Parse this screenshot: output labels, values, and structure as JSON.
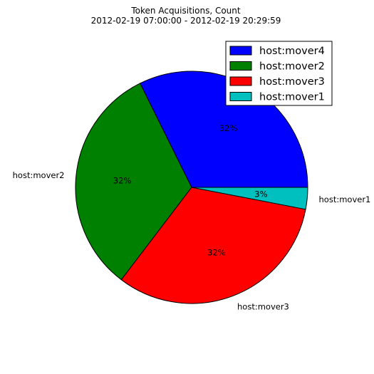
{
  "chart_data": {
    "type": "pie",
    "title": "Token Acquisitions, Count",
    "subtitle": "2012-02-19 07:00:00 - 2012-02-19 20:29:59",
    "slices": [
      {
        "label": "host:mover4",
        "value": 32,
        "percent_label": "32%",
        "color": "#0000ff",
        "outer_label": ""
      },
      {
        "label": "host:mover2",
        "value": 32,
        "percent_label": "32%",
        "color": "#008000",
        "outer_label": "host:mover2"
      },
      {
        "label": "host:mover3",
        "value": 32,
        "percent_label": "32%",
        "color": "#ff0000",
        "outer_label": "host:mover3"
      },
      {
        "label": "host:mover1",
        "value": 3,
        "percent_label": "3%",
        "color": "#00bfbf",
        "outer_label": "host:mover1"
      }
    ],
    "start_angle_deg": 0,
    "direction": "counterclockwise",
    "legend": {
      "placement": "top-right",
      "entries": [
        "host:mover4",
        "host:mover2",
        "host:mover3",
        "host:mover1"
      ]
    }
  }
}
